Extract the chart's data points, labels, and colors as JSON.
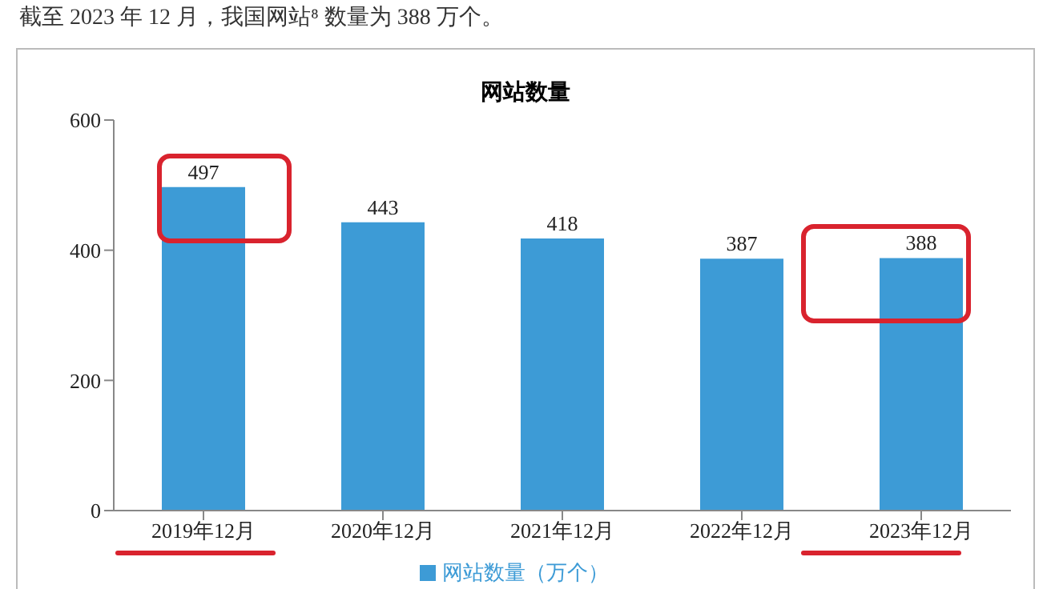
{
  "chart_data": {
    "type": "bar",
    "title": "网站数量",
    "annotations": [
      "截至 2023 年 12 月，我国网站⁸ 数量为 388 万个。"
    ],
    "categories": [
      "2019年12月",
      "2020年12月",
      "2021年12月",
      "2022年12月",
      "2023年12月"
    ],
    "series": [
      {
        "name": "网站数量（万个）",
        "color": "#3d9bd6",
        "values": [
          497,
          443,
          418,
          387,
          388
        ]
      }
    ],
    "ylim": [
      0,
      600
    ],
    "yticks": [
      0,
      200,
      400,
      600
    ],
    "grid": false,
    "legend": "bottom",
    "data_labels": true
  }
}
